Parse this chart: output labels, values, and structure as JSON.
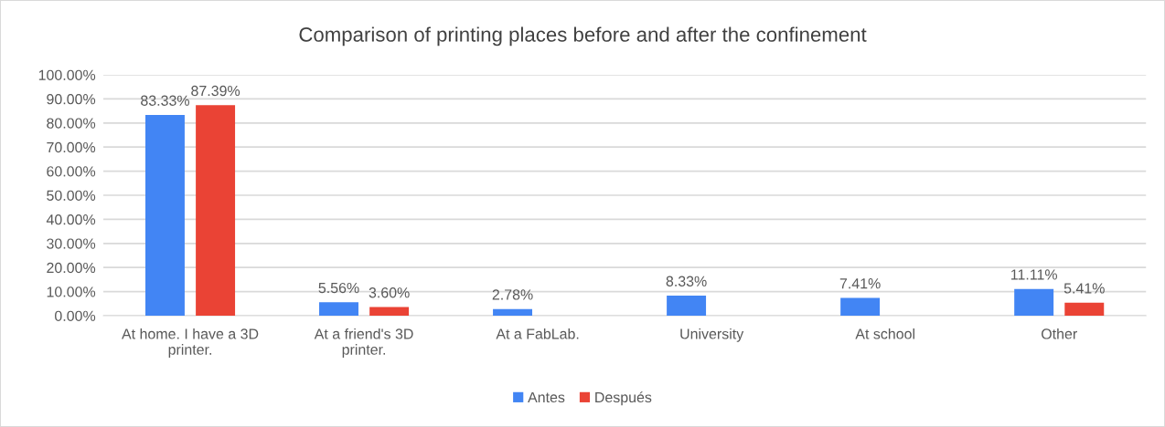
{
  "chart_data": {
    "type": "bar",
    "title": "Comparison of printing places before and after the confinement",
    "categories": [
      "At home. I have a 3D printer.",
      "At a friend's 3D printer.",
      "At a FabLab.",
      "University",
      "At school",
      "Other"
    ],
    "series": [
      {
        "name": "Antes",
        "color": "#4285f4",
        "values": [
          83.33,
          5.56,
          2.78,
          8.33,
          7.41,
          11.11
        ],
        "value_labels": [
          "83.33%",
          "5.56%",
          "2.78%",
          "8.33%",
          "7.41%",
          "11.11%"
        ]
      },
      {
        "name": "Después",
        "color": "#ea4335",
        "values": [
          87.39,
          3.6,
          null,
          null,
          null,
          5.41
        ],
        "value_labels": [
          "87.39%",
          "3.60%",
          null,
          null,
          null,
          "5.41%"
        ]
      }
    ],
    "ylim": [
      0,
      100
    ],
    "yticks": [
      {
        "value": 0,
        "label": "0.00%"
      },
      {
        "value": 10,
        "label": "10.00%"
      },
      {
        "value": 20,
        "label": "20.00%"
      },
      {
        "value": 30,
        "label": "30.00%"
      },
      {
        "value": 40,
        "label": "40.00%"
      },
      {
        "value": 50,
        "label": "50.00%"
      },
      {
        "value": 60,
        "label": "60.00%"
      },
      {
        "value": 70,
        "label": "70.00%"
      },
      {
        "value": 80,
        "label": "80.00%"
      },
      {
        "value": 90,
        "label": "90.00%"
      },
      {
        "value": 100,
        "label": "100.00%"
      }
    ],
    "grid": "y",
    "legend": "bottom"
  }
}
